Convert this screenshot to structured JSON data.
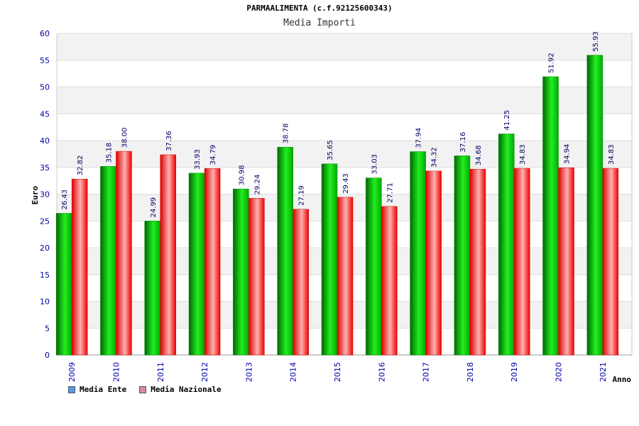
{
  "chart_data": {
    "type": "bar",
    "title": "PARMAALIMENTA (c.f.92125600343)",
    "subtitle": "Media Importi",
    "xlabel": "Anno",
    "ylabel": "Euro",
    "ylim": [
      0,
      60
    ],
    "ytick_step": 5,
    "grid": true,
    "legend_position": "bottom-left",
    "categories": [
      "2009",
      "2010",
      "2011",
      "2012",
      "2013",
      "2014",
      "2015",
      "2016",
      "2017",
      "2018",
      "2019",
      "2020",
      "2021"
    ],
    "series": [
      {
        "name": "Media Ente",
        "color": "#00b000",
        "legend_color": "#5599ee",
        "values": [
          26.43,
          35.18,
          24.99,
          33.93,
          30.98,
          38.78,
          35.65,
          33.03,
          37.94,
          37.16,
          41.25,
          51.92,
          55.93
        ]
      },
      {
        "name": "Media Nazionale",
        "color": "#ee1111",
        "legend_color": "#dd88aa",
        "values": [
          32.82,
          38.0,
          37.36,
          34.79,
          29.24,
          27.19,
          29.43,
          27.71,
          34.32,
          34.68,
          34.83,
          34.94,
          34.83
        ]
      }
    ]
  }
}
